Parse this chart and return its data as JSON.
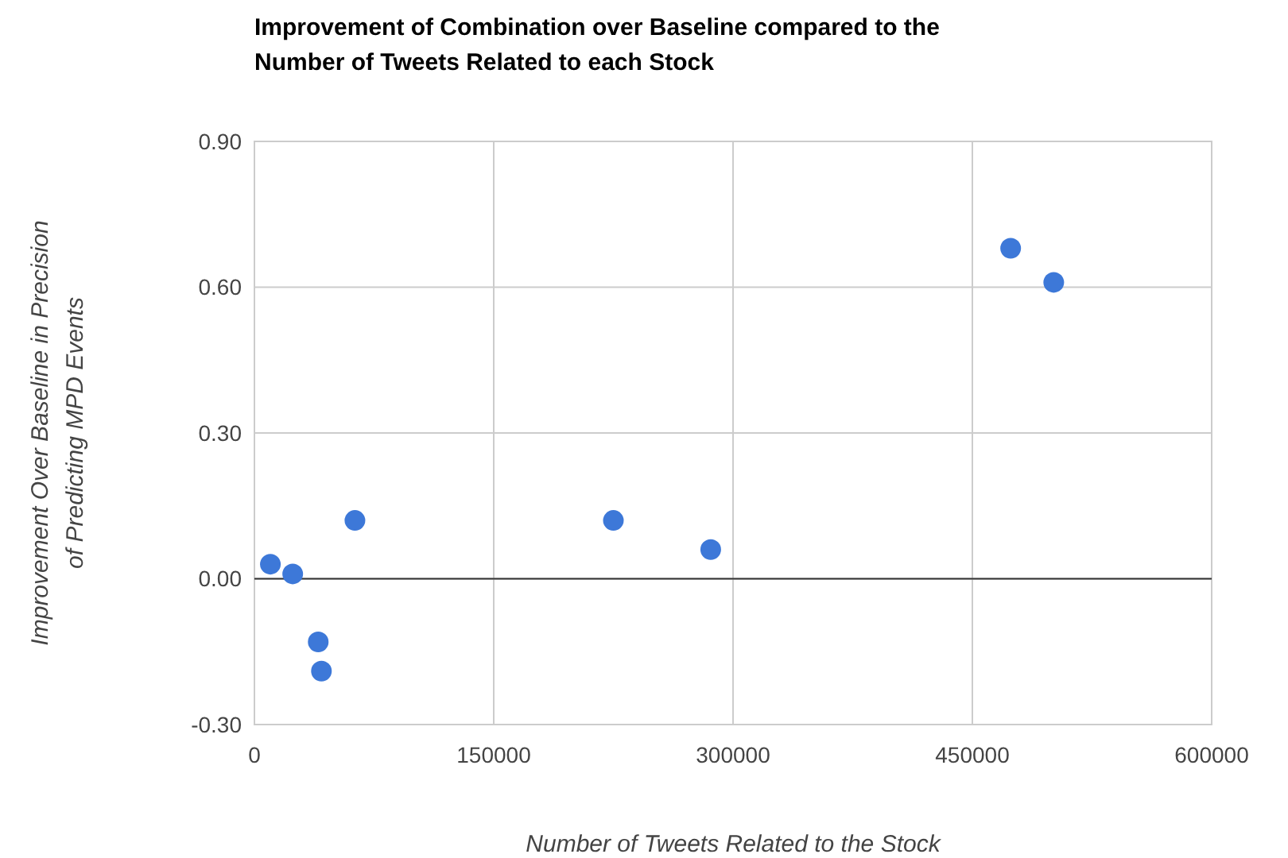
{
  "chart_data": {
    "type": "scatter",
    "title": "Improvement of Combination over Baseline compared to the\nNumber of Tweets Related to each Stock",
    "xlabel": "Number of Tweets Related to the Stock",
    "ylabel": "Improvement Over Baseline in Precision\nof Predicting MPD Events",
    "series": [
      {
        "color": "#3d78d8",
        "x": [
          10000,
          24000,
          40000,
          42000,
          63000,
          225000,
          286000,
          474000,
          501000
        ],
        "values": [
          0.03,
          0.01,
          -0.13,
          -0.19,
          0.12,
          0.12,
          0.06,
          0.68,
          0.61
        ]
      }
    ],
    "xlim": [
      0,
      600000
    ],
    "xticks": [
      0,
      150000,
      300000,
      450000,
      600000
    ],
    "ylim": [
      -0.3,
      0.9
    ],
    "yticks": [
      {
        "value": -0.3,
        "label": "-0.30"
      },
      {
        "value": 0,
        "label": "0.00"
      },
      {
        "value": 0.3,
        "label": "0.30"
      },
      {
        "value": 0.6,
        "label": "0.60"
      },
      {
        "value": 0.9,
        "label": "0.90"
      }
    ],
    "grid": true,
    "marker": "circle"
  }
}
